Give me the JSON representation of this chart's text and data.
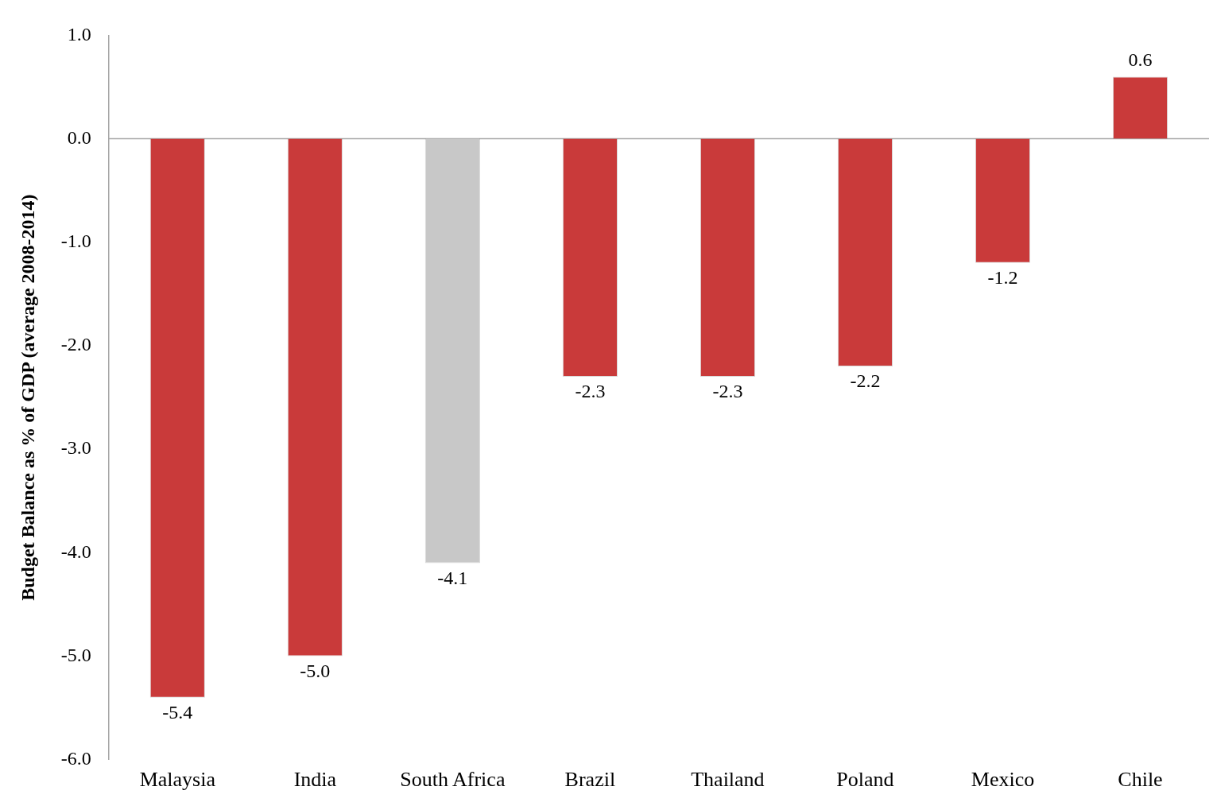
{
  "chart_data": {
    "type": "bar",
    "ylabel": "Budget Balance as % of GDP (average 2008-2014)",
    "categories": [
      "Malaysia",
      "India",
      "South Africa",
      "Brazil",
      "Thailand",
      "Poland",
      "Mexico",
      "Chile"
    ],
    "values": [
      -5.4,
      -5.0,
      -4.1,
      -2.3,
      -2.3,
      -2.2,
      -1.2,
      0.6
    ],
    "value_labels": [
      "-5.4",
      "-5.0",
      "-4.1",
      "-2.3",
      "-2.3",
      "-2.2",
      "-1.2",
      "0.6"
    ],
    "colors": [
      "#c93a3a",
      "#c93a3a",
      "#c8c8c8",
      "#c93a3a",
      "#c93a3a",
      "#c93a3a",
      "#c93a3a",
      "#c93a3a"
    ],
    "ylim": [
      -6,
      1
    ],
    "yticks": [
      {
        "value": -6,
        "label": "-6.0"
      },
      {
        "value": -5,
        "label": "-5.0"
      },
      {
        "value": -4,
        "label": "-4.0"
      },
      {
        "value": -3,
        "label": "-3.0"
      },
      {
        "value": -2,
        "label": "-2.0"
      },
      {
        "value": -1,
        "label": "-1.0"
      },
      {
        "value": 0,
        "label": "0.0"
      },
      {
        "value": 1,
        "label": "1.0"
      }
    ],
    "ref_lines": [
      {
        "axis": "y",
        "value": 0,
        "color": "#a6a6a6"
      }
    ],
    "legend": false,
    "grid": false
  }
}
